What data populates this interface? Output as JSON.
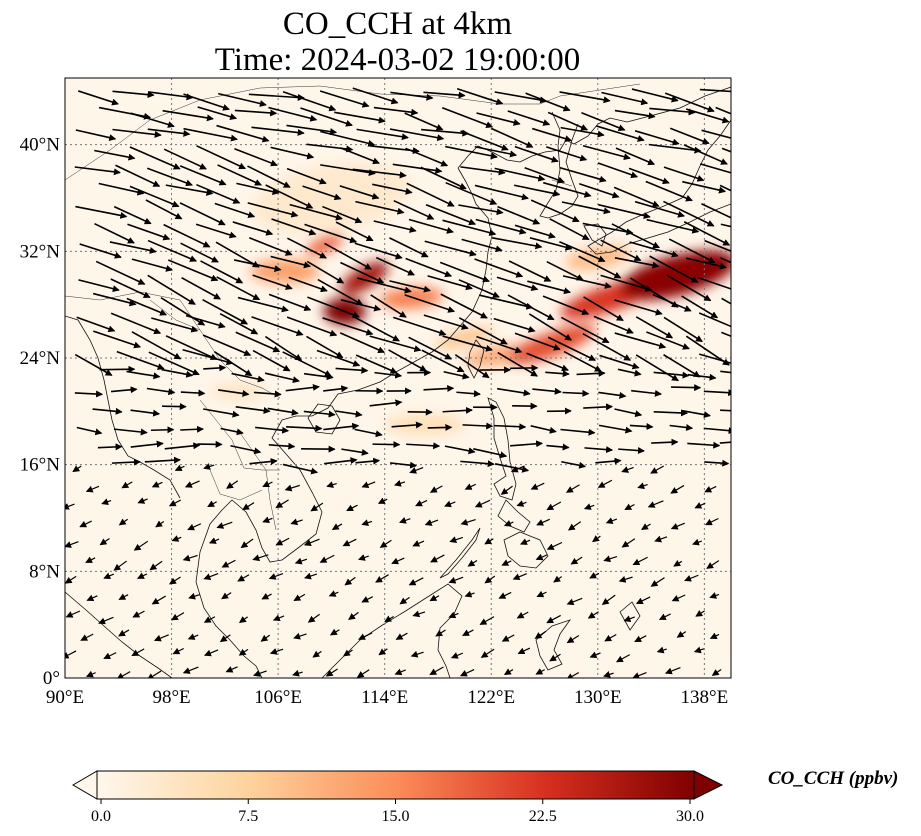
{
  "title": {
    "line1": "CO_CCH at 4km",
    "line2": "Time: 2024-03-02 19:00:00"
  },
  "map": {
    "lon_range": [
      90,
      140
    ],
    "lat_range": [
      0,
      45
    ],
    "lon_ticks": [
      {
        "value": 90,
        "label": "90°E"
      },
      {
        "value": 98,
        "label": "98°E"
      },
      {
        "value": 106,
        "label": "106°E"
      },
      {
        "value": 114,
        "label": "114°E"
      },
      {
        "value": 122,
        "label": "122°E"
      },
      {
        "value": 130,
        "label": "130°E"
      },
      {
        "value": 138,
        "label": "138°E"
      }
    ],
    "lat_ticks": [
      {
        "value": 0,
        "label": "0°"
      },
      {
        "value": 8,
        "label": "8°N"
      },
      {
        "value": 16,
        "label": "16°N"
      },
      {
        "value": 24,
        "label": "24°N"
      },
      {
        "value": 32,
        "label": "32°N"
      },
      {
        "value": 40,
        "label": "40°N"
      }
    ],
    "gridlines": true,
    "colormap": "OrRd",
    "co_plumes": [
      {
        "lon": 111.0,
        "lat": 27.5,
        "sx": 1.6,
        "sy": 1.0,
        "rot": 0,
        "value": 30
      },
      {
        "lon": 112.5,
        "lat": 30.0,
        "sx": 2.0,
        "sy": 0.8,
        "rot": -30,
        "value": 27
      },
      {
        "lon": 109.5,
        "lat": 32.5,
        "sx": 1.5,
        "sy": 0.6,
        "rot": -25,
        "value": 18
      },
      {
        "lon": 116.0,
        "lat": 28.5,
        "sx": 2.4,
        "sy": 0.8,
        "rot": -5,
        "value": 16
      },
      {
        "lon": 106.5,
        "lat": 30.5,
        "sx": 2.6,
        "sy": 0.9,
        "rot": 0,
        "value": 13
      },
      {
        "lon": 120.0,
        "lat": 25.5,
        "sx": 2.2,
        "sy": 0.6,
        "rot": -15,
        "value": 9
      },
      {
        "lon": 136.0,
        "lat": 30.2,
        "sx": 4.5,
        "sy": 1.5,
        "rot": -15,
        "value": 29
      },
      {
        "lon": 131.0,
        "lat": 28.5,
        "sx": 4.0,
        "sy": 1.0,
        "rot": -18,
        "value": 22
      },
      {
        "lon": 126.5,
        "lat": 25.0,
        "sx": 3.5,
        "sy": 0.9,
        "rot": -20,
        "value": 20
      },
      {
        "lon": 122.5,
        "lat": 24.2,
        "sx": 2.5,
        "sy": 0.7,
        "rot": -10,
        "value": 12
      },
      {
        "lon": 130.0,
        "lat": 31.5,
        "sx": 2.5,
        "sy": 0.8,
        "rot": -10,
        "value": 10
      },
      {
        "lon": 117.0,
        "lat": 19.0,
        "sx": 3.0,
        "sy": 0.8,
        "rot": 0,
        "value": 5
      },
      {
        "lon": 103.0,
        "lat": 21.5,
        "sx": 2.0,
        "sy": 0.6,
        "rot": 0,
        "value": 4
      },
      {
        "lon": 110.0,
        "lat": 36.0,
        "sx": 6.0,
        "sy": 2.5,
        "rot": -10,
        "value": 3
      }
    ],
    "wind_vectors": "stronger westerly/north-westerly flow north of ~20°N, weak north-easterly flow south of ~16°N"
  },
  "colorbar": {
    "label": "CO_CCH (ppbv)",
    "min": 0,
    "max": 30,
    "ticks": [
      "0.0",
      "7.5",
      "15.0",
      "22.5",
      "30.0"
    ],
    "extend": "both"
  }
}
